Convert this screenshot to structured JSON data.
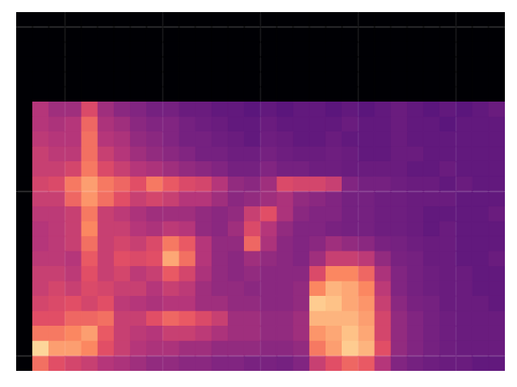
{
  "chart_data": {
    "type": "heatmap",
    "tick_labels": false,
    "zlim": [
      0,
      100
    ],
    "ylim": [
      0,
      24
    ],
    "z": [
      [
        0,
        70,
        62,
        58,
        55,
        50,
        48,
        45,
        42,
        42,
        40,
        40,
        38,
        38,
        36,
        36,
        35,
        38,
        55,
        62,
        68,
        65,
        50,
        38,
        35,
        33,
        32,
        32,
        30,
        30
      ],
      [
        0,
        92,
        80,
        80,
        75,
        62,
        55,
        50,
        48,
        48,
        45,
        45,
        42,
        42,
        42,
        40,
        40,
        42,
        72,
        80,
        90,
        85,
        62,
        42,
        38,
        35,
        33,
        32,
        32,
        32
      ],
      [
        0,
        72,
        72,
        75,
        80,
        65,
        55,
        52,
        50,
        55,
        55,
        52,
        48,
        45,
        45,
        42,
        42,
        45,
        78,
        82,
        88,
        82,
        58,
        42,
        38,
        35,
        33,
        32,
        32,
        32
      ],
      [
        0,
        62,
        62,
        68,
        68,
        70,
        55,
        55,
        62,
        68,
        65,
        60,
        55,
        45,
        45,
        42,
        42,
        45,
        85,
        85,
        85,
        80,
        58,
        42,
        38,
        35,
        33,
        32,
        32,
        32
      ],
      [
        0,
        58,
        60,
        62,
        58,
        62,
        52,
        50,
        48,
        50,
        50,
        45,
        45,
        42,
        42,
        40,
        40,
        42,
        90,
        88,
        82,
        78,
        55,
        40,
        36,
        35,
        32,
        32,
        32,
        30
      ],
      [
        0,
        55,
        58,
        55,
        60,
        58,
        55,
        55,
        50,
        55,
        52,
        45,
        42,
        42,
        40,
        40,
        40,
        42,
        75,
        85,
        82,
        75,
        52,
        38,
        35,
        33,
        32,
        32,
        30,
        30
      ],
      [
        0,
        55,
        55,
        52,
        62,
        55,
        58,
        52,
        55,
        65,
        58,
        48,
        42,
        40,
        42,
        40,
        40,
        40,
        60,
        75,
        75,
        68,
        48,
        38,
        35,
        33,
        32,
        32,
        30,
        30
      ],
      [
        0,
        52,
        52,
        50,
        65,
        55,
        62,
        60,
        62,
        82,
        70,
        50,
        42,
        40,
        45,
        42,
        40,
        38,
        45,
        55,
        55,
        52,
        42,
        36,
        35,
        32,
        32,
        30,
        30,
        32
      ],
      [
        0,
        50,
        52,
        55,
        70,
        55,
        58,
        55,
        60,
        72,
        65,
        50,
        42,
        42,
        68,
        48,
        40,
        38,
        40,
        45,
        42,
        40,
        36,
        35,
        33,
        32,
        32,
        30,
        30,
        30
      ],
      [
        0,
        50,
        52,
        55,
        75,
        55,
        55,
        50,
        48,
        52,
        50,
        42,
        40,
        45,
        60,
        50,
        42,
        38,
        38,
        36,
        35,
        35,
        33,
        33,
        32,
        30,
        32,
        30,
        30,
        30
      ],
      [
        0,
        52,
        52,
        55,
        72,
        55,
        52,
        48,
        45,
        45,
        45,
        42,
        40,
        42,
        55,
        62,
        48,
        40,
        38,
        38,
        35,
        35,
        33,
        33,
        32,
        30,
        30,
        30,
        30,
        32
      ],
      [
        0,
        55,
        55,
        68,
        78,
        70,
        62,
        55,
        58,
        55,
        50,
        50,
        45,
        40,
        42,
        45,
        48,
        42,
        40,
        38,
        35,
        35,
        33,
        33,
        32,
        32,
        32,
        30,
        30,
        30
      ],
      [
        0,
        58,
        60,
        72,
        80,
        72,
        68,
        62,
        72,
        65,
        60,
        58,
        50,
        42,
        40,
        45,
        60,
        58,
        58,
        55,
        38,
        35,
        35,
        33,
        32,
        32,
        30,
        32,
        30,
        30
      ],
      [
        0,
        55,
        55,
        58,
        72,
        60,
        55,
        50,
        48,
        45,
        42,
        40,
        38,
        35,
        35,
        38,
        35,
        35,
        33,
        33,
        32,
        32,
        32,
        32,
        30,
        30,
        32,
        30,
        30,
        30
      ],
      [
        0,
        55,
        52,
        52,
        70,
        55,
        50,
        45,
        42,
        40,
        38,
        35,
        35,
        33,
        33,
        35,
        33,
        32,
        32,
        33,
        32,
        30,
        30,
        32,
        32,
        30,
        30,
        30,
        30,
        30
      ],
      [
        0,
        52,
        50,
        50,
        70,
        50,
        48,
        42,
        40,
        38,
        35,
        35,
        33,
        32,
        30,
        33,
        32,
        30,
        30,
        32,
        30,
        30,
        30,
        32,
        30,
        30,
        30,
        30,
        30,
        30
      ],
      [
        0,
        50,
        48,
        50,
        68,
        48,
        45,
        40,
        38,
        38,
        35,
        33,
        32,
        30,
        30,
        32,
        30,
        30,
        30,
        30,
        32,
        30,
        30,
        32,
        30,
        30,
        28,
        30,
        30,
        30
      ],
      [
        0,
        50,
        45,
        45,
        60,
        45,
        40,
        38,
        35,
        35,
        32,
        32,
        30,
        30,
        28,
        30,
        28,
        30,
        30,
        28,
        30,
        28,
        30,
        32,
        30,
        28,
        30,
        28,
        30,
        32
      ],
      [
        0,
        0,
        0,
        0,
        0,
        0,
        0,
        0,
        0,
        0,
        0,
        0,
        0,
        0,
        0,
        0,
        0,
        0,
        0,
        0,
        0,
        0,
        0,
        0,
        0,
        0,
        0,
        0,
        0,
        0
      ],
      [
        0,
        0,
        0,
        0,
        0,
        0,
        0,
        0,
        0,
        0,
        0,
        0,
        0,
        0,
        0,
        0,
        0,
        0,
        0,
        0,
        0,
        0,
        0,
        0,
        0,
        0,
        0,
        0,
        0,
        0
      ],
      [
        0,
        0,
        0,
        0,
        0,
        0,
        0,
        0,
        0,
        0,
        0,
        0,
        0,
        0,
        0,
        0,
        0,
        0,
        0,
        0,
        0,
        0,
        0,
        0,
        0,
        0,
        0,
        0,
        0,
        0
      ],
      [
        0,
        0,
        0,
        0,
        0,
        0,
        0,
        0,
        0,
        0,
        0,
        0,
        0,
        0,
        0,
        0,
        0,
        0,
        0,
        0,
        0,
        0,
        0,
        0,
        0,
        0,
        0,
        0,
        0,
        0
      ],
      [
        0,
        0,
        0,
        0,
        0,
        0,
        0,
        0,
        0,
        0,
        0,
        0,
        0,
        0,
        0,
        0,
        0,
        0,
        0,
        0,
        0,
        0,
        0,
        0,
        0,
        0,
        0,
        0,
        0,
        0
      ],
      [
        0,
        0,
        0,
        0,
        0,
        0,
        0,
        0,
        0,
        0,
        0,
        0,
        0,
        0,
        0,
        0,
        0,
        0,
        0,
        0,
        0,
        0,
        0,
        0,
        0,
        0,
        0,
        0,
        0,
        0
      ]
    ]
  }
}
